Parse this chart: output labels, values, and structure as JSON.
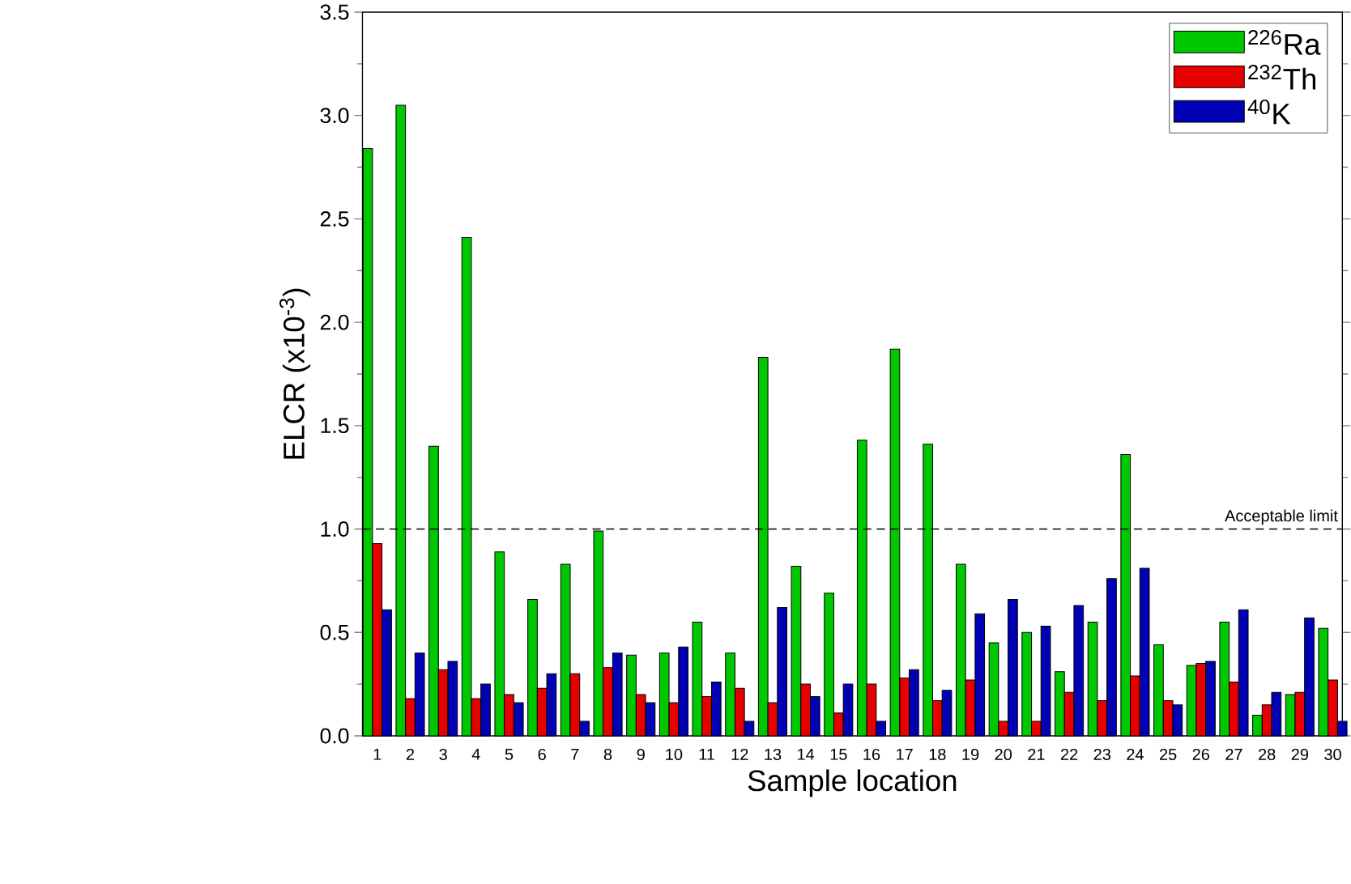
{
  "chart_data": {
    "type": "bar",
    "xlabel": "Sample location",
    "ylabel": "ELCR (x10$^{-3}$)",
    "categories": [
      "1",
      "2",
      "3",
      "4",
      "5",
      "6",
      "7",
      "8",
      "9",
      "10",
      "11",
      "12",
      "13",
      "14",
      "15",
      "16",
      "17",
      "18",
      "19",
      "20",
      "21",
      "22",
      "23",
      "24",
      "25",
      "26",
      "27",
      "28",
      "29",
      "30"
    ],
    "series": [
      {
        "name": "$^{226}$Ra",
        "color": "#00c800",
        "values": [
          2.84,
          3.05,
          1.4,
          2.41,
          0.89,
          0.66,
          0.83,
          0.99,
          0.39,
          0.4,
          0.55,
          0.4,
          1.83,
          0.82,
          0.69,
          1.43,
          1.87,
          1.41,
          0.83,
          0.45,
          0.5,
          0.31,
          0.55,
          1.36,
          0.44,
          0.34,
          0.55,
          0.1,
          0.2,
          0.52
        ]
      },
      {
        "name": "$^{232}$Th",
        "color": "#e60000",
        "values": [
          0.93,
          0.18,
          0.32,
          0.18,
          0.2,
          0.23,
          0.3,
          0.33,
          0.2,
          0.16,
          0.19,
          0.23,
          0.16,
          0.25,
          0.11,
          0.25,
          0.28,
          0.17,
          0.27,
          0.07,
          0.07,
          0.21,
          0.17,
          0.29,
          0.17,
          0.35,
          0.26,
          0.15,
          0.21,
          0.27
        ]
      },
      {
        "name": "$^{40}$K",
        "color": "#0000b4",
        "values": [
          0.61,
          0.4,
          0.36,
          0.25,
          0.16,
          0.3,
          0.07,
          0.4,
          0.16,
          0.43,
          0.26,
          0.07,
          0.62,
          0.19,
          0.25,
          0.07,
          0.32,
          0.22,
          0.59,
          0.66,
          0.53,
          0.63,
          0.76,
          0.81,
          0.15,
          0.36,
          0.61,
          0.21,
          0.57,
          0.07
        ]
      }
    ],
    "ylim": [
      0,
      3.5
    ],
    "yticks": [
      {
        "value": 0,
        "label": "0.0"
      },
      {
        "value": 0.5,
        "label": "0.5"
      },
      {
        "value": 1,
        "label": "1.0"
      },
      {
        "value": 1.5,
        "label": "1.5"
      },
      {
        "value": 2,
        "label": "2.0"
      },
      {
        "value": 2.5,
        "label": "2.5"
      },
      {
        "value": 3,
        "label": "3.0"
      },
      {
        "value": 3.5,
        "label": "3.5"
      }
    ],
    "ref_lines": [
      {
        "axis": "y",
        "value": 1,
        "label": "Acceptable limit",
        "line_style": "dashed"
      }
    ],
    "legend": "top right",
    "grid": false
  }
}
